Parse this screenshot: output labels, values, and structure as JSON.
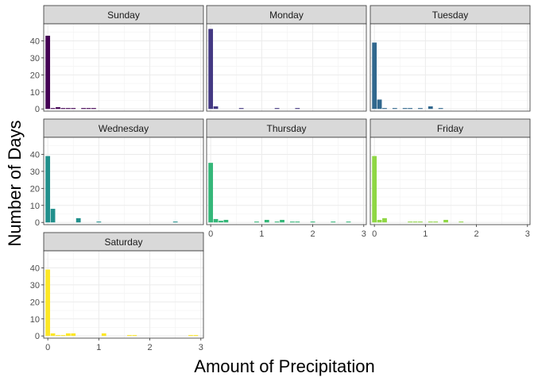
{
  "chart_data": {
    "type": "bar",
    "xlabel": "Amount of Precipitation",
    "ylabel": "Number of Days",
    "xlim": [
      -0.08,
      3.05
    ],
    "ylim": [
      -1.3,
      50
    ],
    "x_ticks": [
      0,
      1,
      2,
      3
    ],
    "y_ticks": [
      0,
      10,
      20,
      30,
      40
    ],
    "grid": true,
    "legend": "none",
    "bin_width": 0.1,
    "panels": [
      {
        "name": "Sunday",
        "color": "#440154",
        "bars": [
          {
            "x": 0.0,
            "y": 43
          },
          {
            "x": 0.1,
            "y": 0.5
          },
          {
            "x": 0.2,
            "y": 1
          },
          {
            "x": 0.3,
            "y": 0.5
          },
          {
            "x": 0.4,
            "y": 0.5
          },
          {
            "x": 0.5,
            "y": 0.5
          },
          {
            "x": 0.7,
            "y": 0.5
          },
          {
            "x": 0.8,
            "y": 0.5
          },
          {
            "x": 0.9,
            "y": 0.5
          }
        ]
      },
      {
        "name": "Monday",
        "color": "#443983",
        "bars": [
          {
            "x": 0.0,
            "y": 47
          },
          {
            "x": 0.1,
            "y": 1.5
          },
          {
            "x": 0.6,
            "y": 0.5
          },
          {
            "x": 1.3,
            "y": 0.5
          },
          {
            "x": 1.7,
            "y": 0.5
          }
        ]
      },
      {
        "name": "Tuesday",
        "color": "#31688E",
        "bars": [
          {
            "x": 0.0,
            "y": 39
          },
          {
            "x": 0.1,
            "y": 5.5
          },
          {
            "x": 0.2,
            "y": 0.5
          },
          {
            "x": 0.4,
            "y": 0.5
          },
          {
            "x": 0.6,
            "y": 0.5
          },
          {
            "x": 0.7,
            "y": 0.5
          },
          {
            "x": 0.9,
            "y": 0.5
          },
          {
            "x": 1.1,
            "y": 1.5
          },
          {
            "x": 1.3,
            "y": 0.5
          }
        ]
      },
      {
        "name": "Wednesday",
        "color": "#21908C",
        "bars": [
          {
            "x": 0.0,
            "y": 39
          },
          {
            "x": 0.1,
            "y": 8
          },
          {
            "x": 0.6,
            "y": 2.5
          },
          {
            "x": 1.0,
            "y": 0.5
          },
          {
            "x": 2.5,
            "y": 0.5
          }
        ]
      },
      {
        "name": "Thursday",
        "color": "#35B779",
        "bars": [
          {
            "x": 0.0,
            "y": 35
          },
          {
            "x": 0.1,
            "y": 2
          },
          {
            "x": 0.2,
            "y": 1
          },
          {
            "x": 0.3,
            "y": 1.5
          },
          {
            "x": 0.9,
            "y": 0.5
          },
          {
            "x": 1.1,
            "y": 1.5
          },
          {
            "x": 1.3,
            "y": 0.5
          },
          {
            "x": 1.4,
            "y": 1.5
          },
          {
            "x": 1.6,
            "y": 0.5
          },
          {
            "x": 1.7,
            "y": 0.5
          },
          {
            "x": 2.0,
            "y": 0.5
          },
          {
            "x": 2.4,
            "y": 0.5
          },
          {
            "x": 2.7,
            "y": 0.5
          }
        ]
      },
      {
        "name": "Friday",
        "color": "#8FD744",
        "bars": [
          {
            "x": 0.0,
            "y": 39
          },
          {
            "x": 0.1,
            "y": 1.5
          },
          {
            "x": 0.2,
            "y": 2.5
          },
          {
            "x": 0.7,
            "y": 0.5
          },
          {
            "x": 0.8,
            "y": 0.5
          },
          {
            "x": 0.9,
            "y": 0.5
          },
          {
            "x": 1.1,
            "y": 0.5
          },
          {
            "x": 1.2,
            "y": 0.5
          },
          {
            "x": 1.4,
            "y": 1.5
          },
          {
            "x": 1.7,
            "y": 0.5
          }
        ]
      },
      {
        "name": "Saturday",
        "color": "#FDE725",
        "bars": [
          {
            "x": 0.0,
            "y": 39
          },
          {
            "x": 0.1,
            "y": 1.5
          },
          {
            "x": 0.2,
            "y": 0.5
          },
          {
            "x": 0.3,
            "y": 0.5
          },
          {
            "x": 0.4,
            "y": 1.5
          },
          {
            "x": 0.5,
            "y": 1.5
          },
          {
            "x": 1.1,
            "y": 1.5
          },
          {
            "x": 1.6,
            "y": 0.5
          },
          {
            "x": 1.7,
            "y": 0.5
          },
          {
            "x": 2.8,
            "y": 0.5
          },
          {
            "x": 2.9,
            "y": 0.5
          }
        ]
      }
    ]
  }
}
